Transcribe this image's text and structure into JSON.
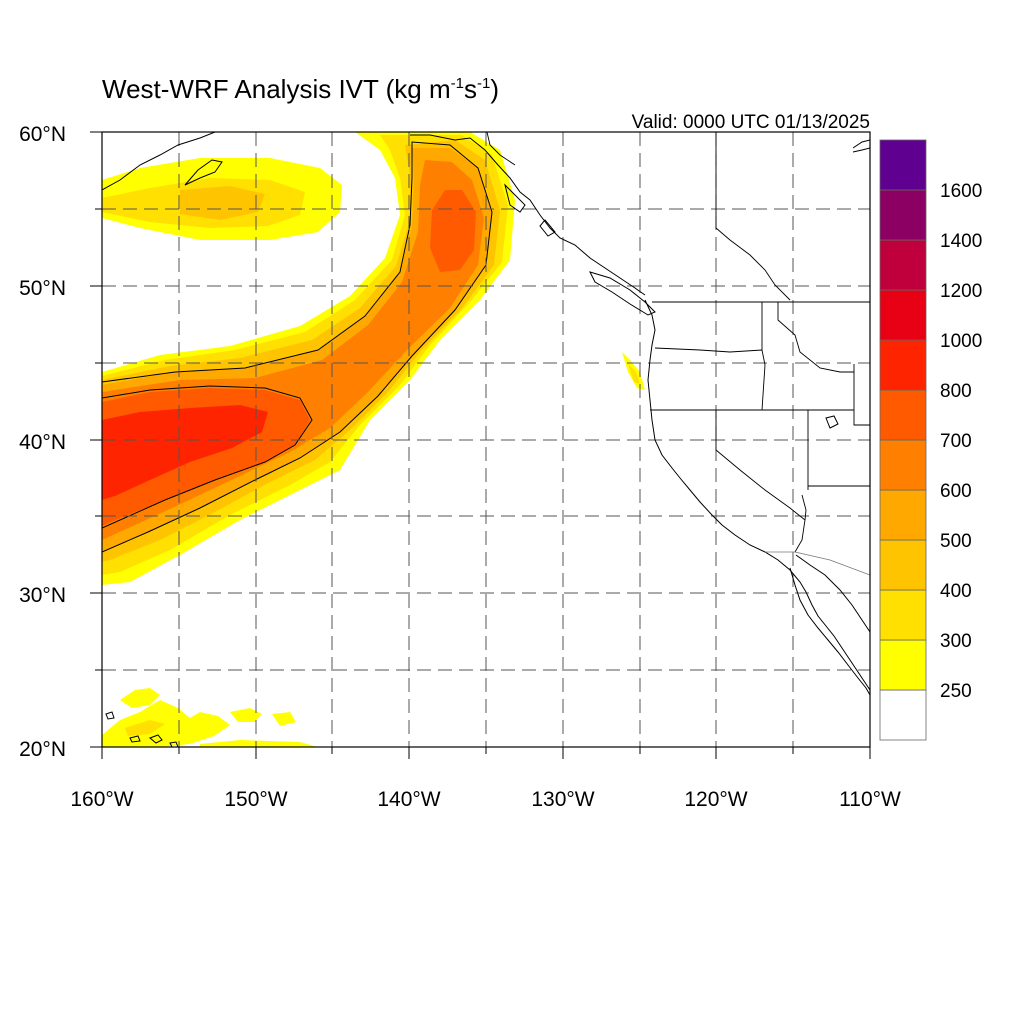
{
  "title": "West-WRF Analysis IVT (kg m",
  "title_sup1": "-1",
  "title_mid": "s",
  "title_sup2": "-1",
  "title_end": ")",
  "valid": "Valid: 0000 UTC 01/13/2025",
  "chart_data": {
    "type": "filled-contour-map",
    "variable": "IVT",
    "units": "kg m-1 s-1",
    "lon_range": [
      -160,
      -110
    ],
    "lat_range": [
      20,
      60
    ],
    "y_ticks": [
      "20°N",
      "30°N",
      "40°N",
      "50°N",
      "60°N"
    ],
    "x_ticks": [
      "160°W",
      "150°W",
      "140°W",
      "130°W",
      "120°W",
      "110°W"
    ],
    "gridlines": "dashed every 5°",
    "colorbar": {
      "levels": [
        250,
        300,
        400,
        500,
        600,
        700,
        800,
        1000,
        1200,
        1400,
        1600
      ],
      "labels": [
        "250",
        "300",
        "400",
        "500",
        "600",
        "700",
        "800",
        "1000",
        "1200",
        "1400",
        "1600"
      ],
      "colors": [
        "#ffffff",
        "#ffff00",
        "#ffe000",
        "#ffc400",
        "#ffa800",
        "#ff8000",
        "#ff5a00",
        "#ff2400",
        "#e80014",
        "#c0003c",
        "#8c0064",
        "#600090"
      ]
    }
  }
}
